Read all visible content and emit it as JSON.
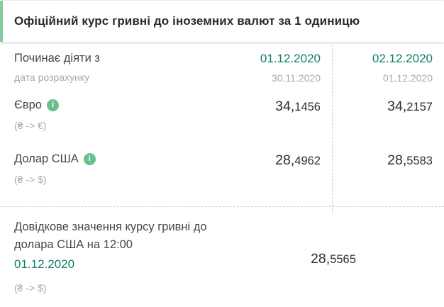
{
  "header": {
    "title": "Офіційний курс гривні до іноземних валют за 1 одиницю"
  },
  "table": {
    "date_row": {
      "label": "Починає діяти з",
      "sublabel": "дата розрахунку",
      "col1_date": "01.12.2020",
      "col1_subdate": "30.11.2020",
      "col2_date": "02.12.2020",
      "col2_subdate": "01.12.2020"
    },
    "rows": [
      {
        "currency": "Євро",
        "pair": "(₴ -> €)",
        "v1_int": "34,",
        "v1_frac": "1456",
        "v2_int": "34,",
        "v2_frac": "2157"
      },
      {
        "currency": "Долар США",
        "pair": "(₴ -> $)",
        "v1_int": "28,",
        "v1_frac": "4962",
        "v2_int": "28,",
        "v2_frac": "5583"
      }
    ]
  },
  "reference": {
    "label": "Довідкове значення курсу гривні до долара США на 12:00",
    "date": "01.12.2020",
    "pair": "(₴ -> $)",
    "value_int": "28,",
    "value_frac": "5565"
  },
  "icons": {
    "info_glyph": "i"
  },
  "colors": {
    "accent-bar": "#84cba0",
    "info-icon": "#67c18b",
    "green-text": "#0d7f6a",
    "value-text": "#2f2f33",
    "label-text": "#47474c",
    "muted-text": "#a9a9ae",
    "divider": "#cccccc",
    "title-text": "#2b2b2b"
  }
}
